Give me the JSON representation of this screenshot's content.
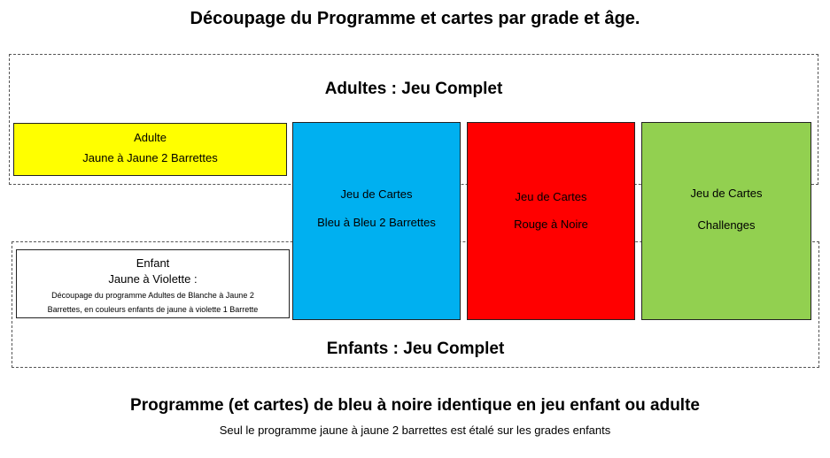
{
  "title": "Découpage du Programme et cartes par grade et âge.",
  "adults_section": {
    "label": "Adultes : Jeu Complet"
  },
  "children_section": {
    "label": "Enfants : Jeu Complet"
  },
  "adult_box": {
    "line1": "Adulte",
    "line2": "Jaune à Jaune 2 Barrettes",
    "color": "#ffff00"
  },
  "cards": [
    {
      "line1": "Jeu de Cartes",
      "line2": "Bleu à Bleu 2 Barrettes",
      "color": "#00b0f0"
    },
    {
      "line1": "Jeu de Cartes",
      "line2": "Rouge à Noire",
      "color": "#ff0000"
    },
    {
      "line1": "Jeu de Cartes",
      "line2": "Challenges",
      "color": "#92d050"
    }
  ],
  "child_box": {
    "line1": "Enfant",
    "line2": "Jaune à Violette :",
    "line3": "Découpage du programme Adultes  de Blanche à Jaune  2",
    "line4": "Barrettes, en couleurs enfants  de jaune à violette 1 Barrette"
  },
  "footer": {
    "headline": "Programme (et cartes) de bleu à noire identique en jeu enfant ou adulte",
    "subline": "Seul le programme jaune à jaune 2 barrettes est étalé sur les grades enfants"
  }
}
